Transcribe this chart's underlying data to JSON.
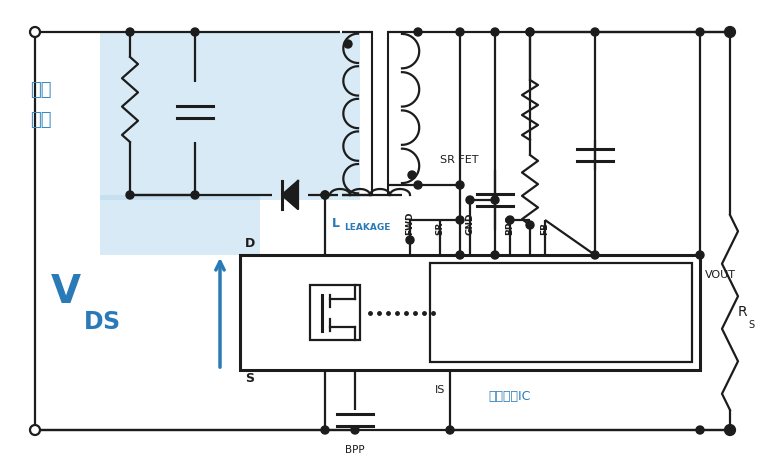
{
  "bg_color": "#ffffff",
  "line_color": "#1c1c1c",
  "highlight_color": "#b8d9ee",
  "highlight_alpha": 0.55,
  "accent_color": "#2a7ab8",
  "text_color_cn": "#3a8abf",
  "fig_width": 7.65,
  "fig_height": 4.59,
  "dpi": 100,
  "label_lleakage": "L",
  "label_lleakage_sub": "LEAKAGE",
  "label_srfet": "SR FET",
  "label_vout": "VOUT",
  "label_rs": "R",
  "label_rs_sub": "S",
  "label_bpp": "BPP",
  "label_is": "IS",
  "label_d": "D",
  "label_s": "S",
  "label_fwd": "FWD",
  "label_sr": "SR",
  "label_gnd": "GND",
  "label_bps": "BPS",
  "label_fb": "FB",
  "label_cn1": "初级",
  "label_cn2": "钓位",
  "label_cn3": "次级控制IC"
}
